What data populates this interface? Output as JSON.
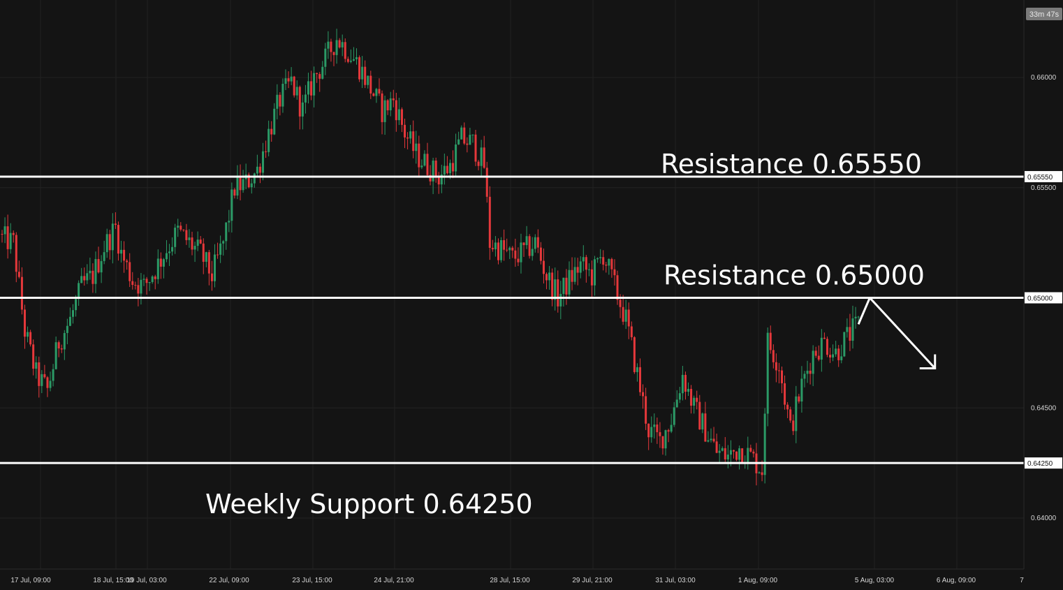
{
  "timer": "33m 47s",
  "chart_data": {
    "type": "candlestick",
    "price_axis_ticks": [
      "0.66000",
      "0.65500",
      "0.64500",
      "0.64000"
    ],
    "time_axis_ticks": [
      "17 Jul, 09:00",
      "18 Jul, 15:00",
      "19 Jul, 03:00",
      "22 Jul, 09:00",
      "23 Jul, 15:00",
      "24 Jul, 21:00",
      "28 Jul, 15:00",
      "29 Jul, 21:00",
      "31 Jul, 03:00",
      "1 Aug, 09:00",
      "5 Aug, 03:00",
      "6 Aug, 09:00",
      "7"
    ],
    "ylim": [
      0.6378,
      0.6622
    ],
    "levels": [
      {
        "label": "Resistance 0.65550",
        "price": 0.6555,
        "price_tag": "0.65550"
      },
      {
        "label": "Resistance 0.65000",
        "price": 0.65,
        "price_tag": "0.65000"
      },
      {
        "label": "Weekly Support 0.64250",
        "price": 0.6425,
        "price_tag": "0.64250"
      }
    ],
    "path_close": [
      [
        0,
        0.6527
      ],
      [
        4,
        0.6525
      ],
      [
        8,
        0.6485
      ],
      [
        12,
        0.6465
      ],
      [
        16,
        0.6458
      ],
      [
        20,
        0.648
      ],
      [
        24,
        0.649
      ],
      [
        28,
        0.6505
      ],
      [
        32,
        0.651
      ],
      [
        36,
        0.6523
      ],
      [
        40,
        0.6532
      ],
      [
        42,
        0.652
      ],
      [
        46,
        0.6508
      ],
      [
        50,
        0.6505
      ],
      [
        54,
        0.6513
      ],
      [
        58,
        0.6522
      ],
      [
        62,
        0.653
      ],
      [
        66,
        0.6525
      ],
      [
        70,
        0.652
      ],
      [
        74,
        0.651
      ],
      [
        78,
        0.6525
      ],
      [
        82,
        0.655
      ],
      [
        86,
        0.6552
      ],
      [
        90,
        0.6558
      ],
      [
        94,
        0.6575
      ],
      [
        98,
        0.659
      ],
      [
        102,
        0.6598
      ],
      [
        106,
        0.6585
      ],
      [
        110,
        0.66
      ],
      [
        114,
        0.6608
      ],
      [
        118,
        0.6618
      ],
      [
        122,
        0.6612
      ],
      [
        126,
        0.6605
      ],
      [
        130,
        0.6595
      ],
      [
        134,
        0.6585
      ],
      [
        138,
        0.659
      ],
      [
        142,
        0.6575
      ],
      [
        146,
        0.6565
      ],
      [
        150,
        0.656
      ],
      [
        154,
        0.6555
      ],
      [
        158,
        0.656
      ],
      [
        162,
        0.6572
      ],
      [
        166,
        0.657
      ],
      [
        170,
        0.656
      ],
      [
        172,
        0.6525
      ],
      [
        176,
        0.6522
      ],
      [
        180,
        0.6518
      ],
      [
        184,
        0.6521
      ],
      [
        188,
        0.6525
      ],
      [
        192,
        0.651
      ],
      [
        196,
        0.65
      ],
      [
        200,
        0.6508
      ],
      [
        204,
        0.6515
      ],
      [
        208,
        0.651
      ],
      [
        212,
        0.652
      ],
      [
        216,
        0.6505
      ],
      [
        220,
        0.649
      ],
      [
        224,
        0.6465
      ],
      [
        228,
        0.644
      ],
      [
        232,
        0.6435
      ],
      [
        236,
        0.6445
      ],
      [
        240,
        0.6465
      ],
      [
        244,
        0.645
      ],
      [
        248,
        0.644
      ],
      [
        252,
        0.643
      ],
      [
        256,
        0.6428
      ],
      [
        260,
        0.6432
      ],
      [
        264,
        0.6428
      ],
      [
        268,
        0.6422
      ],
      [
        270,
        0.648
      ],
      [
        274,
        0.647
      ],
      [
        278,
        0.644
      ],
      [
        282,
        0.646
      ],
      [
        286,
        0.6475
      ],
      [
        290,
        0.648
      ],
      [
        294,
        0.6475
      ],
      [
        298,
        0.6482
      ],
      [
        302,
        0.6488
      ]
    ],
    "projection": [
      [
        302,
        0.6488
      ],
      [
        306,
        0.65
      ],
      [
        329,
        0.6468
      ]
    ]
  }
}
